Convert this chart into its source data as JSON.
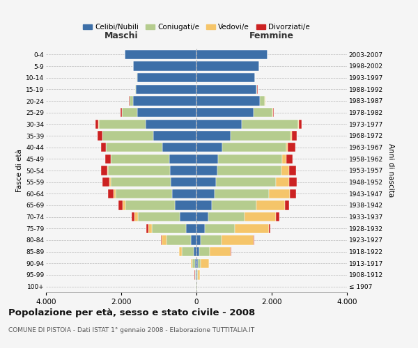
{
  "age_groups": [
    "100+",
    "95-99",
    "90-94",
    "85-89",
    "80-84",
    "75-79",
    "70-74",
    "65-69",
    "60-64",
    "55-59",
    "50-54",
    "45-49",
    "40-44",
    "35-39",
    "30-34",
    "25-29",
    "20-24",
    "15-19",
    "10-14",
    "5-9",
    "0-4"
  ],
  "birth_years": [
    "≤ 1907",
    "1908-1912",
    "1913-1917",
    "1918-1922",
    "1923-1927",
    "1928-1932",
    "1933-1937",
    "1938-1942",
    "1943-1947",
    "1948-1952",
    "1953-1957",
    "1958-1962",
    "1963-1967",
    "1968-1972",
    "1973-1977",
    "1978-1982",
    "1983-1987",
    "1988-1992",
    "1993-1997",
    "1998-2002",
    "2003-2007"
  ],
  "maschi": {
    "celibi": [
      5,
      15,
      30,
      80,
      150,
      280,
      450,
      580,
      650,
      680,
      700,
      720,
      900,
      1150,
      1350,
      1580,
      1680,
      1620,
      1580,
      1680,
      1900
    ],
    "coniugati": [
      5,
      20,
      80,
      300,
      650,
      900,
      1100,
      1300,
      1500,
      1600,
      1650,
      1550,
      1500,
      1350,
      1250,
      400,
      100,
      10,
      5,
      5,
      5
    ],
    "vedovi": [
      2,
      10,
      30,
      80,
      120,
      100,
      100,
      80,
      60,
      40,
      20,
      10,
      5,
      5,
      5,
      5,
      5,
      2,
      2,
      2,
      2
    ],
    "divorziati": [
      1,
      2,
      5,
      10,
      20,
      50,
      80,
      120,
      150,
      180,
      160,
      140,
      130,
      120,
      80,
      30,
      10,
      5,
      2,
      2,
      2
    ]
  },
  "femmine": {
    "nubili": [
      5,
      15,
      30,
      80,
      120,
      220,
      320,
      400,
      480,
      520,
      560,
      580,
      680,
      900,
      1200,
      1520,
      1680,
      1600,
      1550,
      1660,
      1880
    ],
    "coniugate": [
      5,
      20,
      80,
      280,
      550,
      800,
      950,
      1200,
      1450,
      1600,
      1700,
      1700,
      1700,
      1600,
      1500,
      500,
      140,
      15,
      8,
      8,
      8
    ],
    "vedove": [
      10,
      60,
      220,
      550,
      850,
      900,
      850,
      750,
      550,
      350,
      200,
      100,
      50,
      30,
      20,
      10,
      5,
      3,
      2,
      2,
      2
    ],
    "divorziate": [
      1,
      2,
      5,
      10,
      20,
      50,
      80,
      120,
      160,
      200,
      190,
      180,
      200,
      130,
      80,
      30,
      10,
      5,
      2,
      2,
      2
    ]
  },
  "colors": {
    "celibi_nubili": "#3d6fa8",
    "coniugati": "#b5cc8e",
    "vedovi": "#f5c56a",
    "divorziati": "#cc2222"
  },
  "xlim": 4000,
  "title": "Popolazione per età, sesso e stato civile - 2008",
  "subtitle": "COMUNE DI PISTOIA - Dati ISTAT 1° gennaio 2008 - Elaborazione TUTTITALIA.IT",
  "xlabel_left": "Maschi",
  "xlabel_right": "Femmine",
  "ylabel_left": "Fasce di età",
  "ylabel_right": "Anni di nascita",
  "legend_labels": [
    "Celibi/Nubili",
    "Coniugati/e",
    "Vedovi/e",
    "Divorziati/e"
  ],
  "background_color": "#f5f5f5",
  "xtick_labels": [
    "4.000",
    "2.000",
    "0",
    "2.000",
    "4.000"
  ],
  "xtick_vals": [
    -4000,
    -2000,
    0,
    2000,
    4000
  ]
}
